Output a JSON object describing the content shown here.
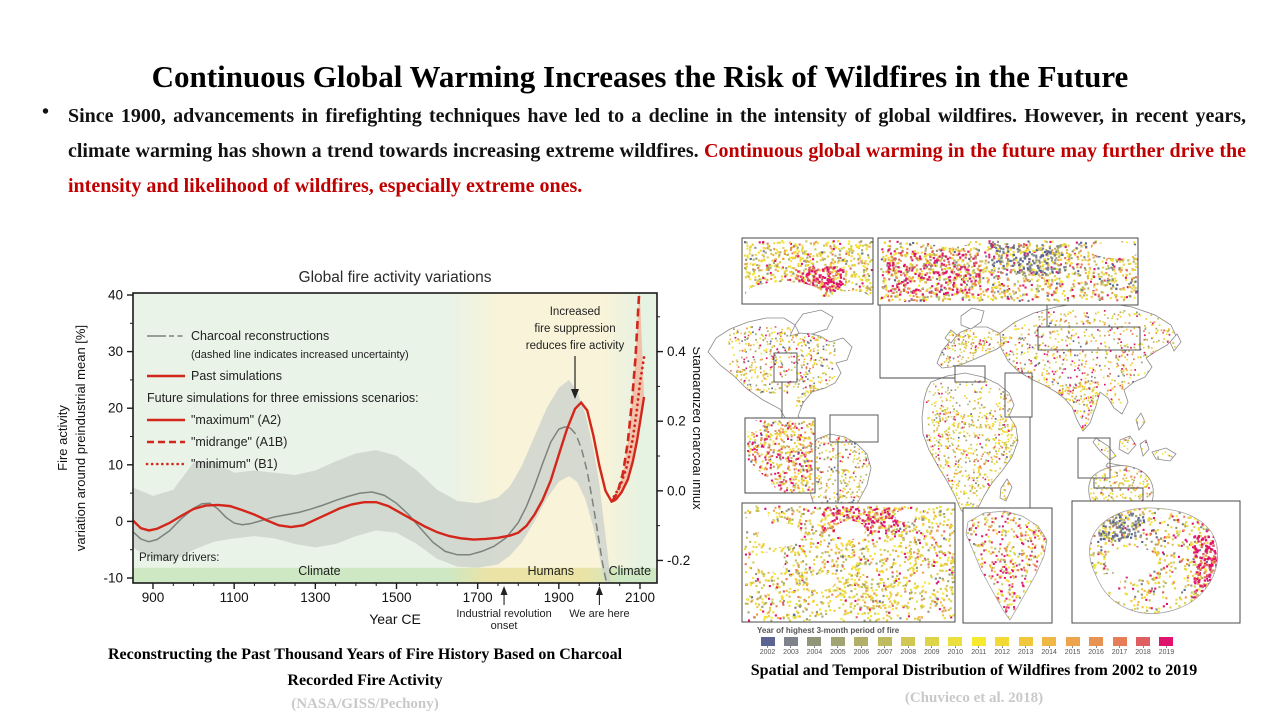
{
  "slide": {
    "title": "Continuous Global Warming Increases the Risk of Wildfires in the Future",
    "bullet_marker": "•",
    "bullet_black": "Since 1900, advancements in firefighting techniques have led to a decline in the intensity of global wildfires. However, in recent years, climate warming has shown a trend towards increasing extreme wildfires.",
    "bullet_red": "Continuous global warming in the future may further drive the intensity and likelihood of wildfires, especially extreme ones."
  },
  "left_figure": {
    "caption_line1": "Reconstructing the Past Thousand Years of Fire History Based on Charcoal",
    "caption_line2": "Recorded Fire Activity",
    "source": "(NASA/GISS/Pechony)",
    "chart_data": {
      "type": "line",
      "title": "Global fire activity variations",
      "xlabel": "Year CE",
      "ylabel_left_line1": "Fire activity",
      "ylabel_left_line2": "variation around preindustrial mean [%]",
      "ylabel_right": "Standardized charcoal influx",
      "xlim": [
        851,
        2142
      ],
      "ylim_left": [
        -10.9,
        40
      ],
      "xticks": [
        900,
        1100,
        1300,
        1500,
        1700,
        1900,
        2100
      ],
      "yticks_left": [
        -10,
        0,
        10,
        20,
        30,
        40
      ],
      "yticks_right": [
        -0.2,
        0.0,
        0.2,
        0.4
      ],
      "right_axis_map": {
        "pct_at_zero_influx": 5.4,
        "pct_per_influx": 61.5
      },
      "grid": false,
      "legend_position": "top-left",
      "legend": [
        {
          "label": "Charcoal reconstructions",
          "marker": "gray-solid-dash",
          "small": false
        },
        {
          "label": "(dashed line indicates increased uncertainty)",
          "marker": "none",
          "small": true
        },
        {
          "label": "Past simulations",
          "marker": "red-solid",
          "small": false
        },
        {
          "label": "Future simulations for three emissions scenarios:",
          "marker": "none",
          "small": false
        },
        {
          "label": "\"maximum\" (A2)",
          "marker": "red-solid",
          "small": false
        },
        {
          "label": "\"midrange\" (A1B)",
          "marker": "red-dashed",
          "small": false
        },
        {
          "label": "\"minimum\" (B1)",
          "marker": "red-dotted",
          "small": false
        }
      ],
      "annotation_fire_suppression": [
        "Increased",
        "fire suppression",
        "reduces fire activity"
      ],
      "primary_drivers_label": "Primary drivers:",
      "driver_bands": [
        {
          "label": "Climate",
          "year": 1310
        },
        {
          "label": "Humans",
          "year": 1880
        },
        {
          "label": "Climate",
          "year": 2075
        }
      ],
      "axis_annotations": [
        {
          "label_lines": [
            "Industrial revolution",
            "onset"
          ],
          "year": 1765
        },
        {
          "label_lines": [
            "We are here"
          ],
          "year": 2000
        }
      ],
      "series": [
        {
          "name": "Charcoal reconstructions",
          "color": "#7d827d",
          "style": "solid",
          "width": 1.5,
          "points": [
            [
              850,
              -1.8
            ],
            [
              870,
              -3.1
            ],
            [
              890,
              -3.6
            ],
            [
              910,
              -3.2
            ],
            [
              940,
              -1.7
            ],
            [
              970,
              0.5
            ],
            [
              1000,
              2.3
            ],
            [
              1020,
              3.1
            ],
            [
              1040,
              3.2
            ],
            [
              1060,
              2.2
            ],
            [
              1080,
              0.7
            ],
            [
              1100,
              -0.3
            ],
            [
              1120,
              -0.6
            ],
            [
              1140,
              -0.4
            ],
            [
              1170,
              0.2
            ],
            [
              1200,
              0.8
            ],
            [
              1230,
              1.2
            ],
            [
              1260,
              1.6
            ],
            [
              1290,
              2.2
            ],
            [
              1320,
              2.9
            ],
            [
              1350,
              3.7
            ],
            [
              1380,
              4.4
            ],
            [
              1410,
              5.0
            ],
            [
              1440,
              5.2
            ],
            [
              1470,
              4.6
            ],
            [
              1500,
              3.2
            ],
            [
              1530,
              1.2
            ],
            [
              1560,
              -1.3
            ],
            [
              1590,
              -3.7
            ],
            [
              1620,
              -5.3
            ],
            [
              1650,
              -5.9
            ],
            [
              1680,
              -5.9
            ],
            [
              1710,
              -5.3
            ],
            [
              1740,
              -4.4
            ],
            [
              1770,
              -2.9
            ],
            [
              1800,
              -0.2
            ],
            [
              1820,
              2.6
            ],
            [
              1840,
              6.2
            ],
            [
              1860,
              10.2
            ],
            [
              1880,
              14.0
            ],
            [
              1900,
              16.3
            ],
            [
              1915,
              16.7
            ],
            [
              1928,
              16.5
            ]
          ]
        },
        {
          "name": "Charcoal reconstructions (increased uncertainty)",
          "color": "#7d827d",
          "style": "dashed",
          "width": 1.5,
          "points": [
            [
              1928,
              16.5
            ],
            [
              1942,
              15.4
            ],
            [
              1956,
              12.8
            ],
            [
              1970,
              8.8
            ],
            [
              1984,
              3.2
            ],
            [
              1998,
              -3.0
            ],
            [
              2008,
              -7.5
            ],
            [
              2018,
              -11.0
            ],
            [
              2024,
              -13.0
            ]
          ]
        },
        {
          "name": "Past simulations",
          "color": "#d3271c",
          "style": "solid",
          "width": 2.4,
          "points": [
            [
              850,
              0.2
            ],
            [
              870,
              -1.2
            ],
            [
              890,
              -1.6
            ],
            [
              910,
              -1.3
            ],
            [
              940,
              -0.3
            ],
            [
              970,
              1.0
            ],
            [
              1000,
              2.2
            ],
            [
              1030,
              2.8
            ],
            [
              1060,
              2.9
            ],
            [
              1090,
              2.7
            ],
            [
              1120,
              2.0
            ],
            [
              1150,
              1.2
            ],
            [
              1180,
              0.2
            ],
            [
              1210,
              -0.7
            ],
            [
              1240,
              -1.0
            ],
            [
              1270,
              -0.7
            ],
            [
              1300,
              0.3
            ],
            [
              1330,
              1.3
            ],
            [
              1360,
              2.3
            ],
            [
              1390,
              3.0
            ],
            [
              1420,
              3.4
            ],
            [
              1450,
              3.4
            ],
            [
              1480,
              2.7
            ],
            [
              1510,
              1.5
            ],
            [
              1540,
              0.3
            ],
            [
              1570,
              -0.9
            ],
            [
              1600,
              -1.9
            ],
            [
              1630,
              -2.6
            ],
            [
              1660,
              -3.0
            ],
            [
              1690,
              -3.2
            ],
            [
              1720,
              -3.1
            ],
            [
              1750,
              -2.9
            ],
            [
              1780,
              -2.5
            ],
            [
              1800,
              -2.0
            ],
            [
              1820,
              -0.8
            ],
            [
              1840,
              1.2
            ],
            [
              1860,
              3.8
            ],
            [
              1880,
              7.2
            ],
            [
              1900,
              11.8
            ],
            [
              1920,
              16.3
            ],
            [
              1940,
              19.9
            ],
            [
              1955,
              21.0
            ],
            [
              1970,
              19.6
            ],
            [
              1985,
              15.2
            ],
            [
              2000,
              9.8
            ],
            [
              2015,
              5.4
            ],
            [
              2030,
              3.5
            ],
            [
              2040,
              3.8
            ]
          ]
        },
        {
          "name": "\"maximum\" (A2)",
          "color": "#d3271c",
          "style": "solid",
          "width": 2.4,
          "points": [
            [
              2040,
              3.8
            ],
            [
              2055,
              5.2
            ],
            [
              2070,
              7.4
            ],
            [
              2082,
              10.5
            ],
            [
              2092,
              14.0
            ],
            [
              2100,
              17.5
            ],
            [
              2110,
              22.0
            ]
          ]
        },
        {
          "name": "\"midrange\" (A1B)",
          "color": "#d3271c",
          "style": "dashed",
          "width": 2.6,
          "points": [
            [
              2032,
              3.6
            ],
            [
              2045,
              5.2
            ],
            [
              2058,
              8.5
            ],
            [
              2070,
              14.0
            ],
            [
              2080,
              21.0
            ],
            [
              2089,
              29.0
            ],
            [
              2096,
              38.0
            ],
            [
              2099,
              41.5
            ]
          ]
        },
        {
          "name": "\"minimum\" (B1)",
          "color": "#d3271c",
          "style": "dotted",
          "width": 2.8,
          "points": [
            [
              2036,
              4.4
            ],
            [
              2052,
              6.4
            ],
            [
              2068,
              9.8
            ],
            [
              2082,
              14.5
            ],
            [
              2092,
              19.5
            ],
            [
              2100,
              24.5
            ],
            [
              2110,
              29.0
            ]
          ]
        }
      ],
      "uncertainty_band": {
        "color": "#ccd2cc",
        "upper": [
          [
            850,
            6.0
          ],
          [
            900,
            4.5
          ],
          [
            950,
            5.6
          ],
          [
            1000,
            10.4
          ],
          [
            1050,
            10.6
          ],
          [
            1100,
            8.6
          ],
          [
            1150,
            9.0
          ],
          [
            1200,
            8.6
          ],
          [
            1250,
            8.2
          ],
          [
            1300,
            9.0
          ],
          [
            1350,
            10.6
          ],
          [
            1400,
            12.0
          ],
          [
            1450,
            12.6
          ],
          [
            1500,
            11.6
          ],
          [
            1550,
            9.0
          ],
          [
            1600,
            5.6
          ],
          [
            1650,
            3.6
          ],
          [
            1700,
            3.2
          ],
          [
            1750,
            4.2
          ],
          [
            1780,
            6.2
          ],
          [
            1810,
            10.0
          ],
          [
            1840,
            15.0
          ],
          [
            1870,
            20.0
          ],
          [
            1900,
            23.6
          ],
          [
            1925,
            25.0
          ],
          [
            1945,
            23.0
          ],
          [
            1965,
            19.0
          ],
          [
            1985,
            13.0
          ],
          [
            2000,
            6.5
          ],
          [
            2010,
            0.5
          ],
          [
            2020,
            -5.5
          ],
          [
            2028,
            -11.0
          ]
        ],
        "lower": [
          [
            850,
            -4.6
          ],
          [
            900,
            -6.6
          ],
          [
            950,
            -7.0
          ],
          [
            1000,
            -5.0
          ],
          [
            1050,
            -3.6
          ],
          [
            1100,
            -3.0
          ],
          [
            1150,
            -2.6
          ],
          [
            1200,
            -3.0
          ],
          [
            1250,
            -4.0
          ],
          [
            1300,
            -4.6
          ],
          [
            1350,
            -4.0
          ],
          [
            1400,
            -2.6
          ],
          [
            1450,
            -1.6
          ],
          [
            1500,
            -2.0
          ],
          [
            1550,
            -4.0
          ],
          [
            1600,
            -6.6
          ],
          [
            1650,
            -8.0
          ],
          [
            1700,
            -8.2
          ],
          [
            1750,
            -7.6
          ],
          [
            1780,
            -6.0
          ],
          [
            1810,
            -3.6
          ],
          [
            1840,
            0.0
          ],
          [
            1870,
            4.0
          ],
          [
            1900,
            7.0
          ],
          [
            1925,
            8.0
          ],
          [
            1945,
            7.0
          ],
          [
            1965,
            4.0
          ],
          [
            1985,
            -1.0
          ],
          [
            2000,
            -6.2
          ],
          [
            2010,
            -9.6
          ],
          [
            2020,
            -12.0
          ]
        ]
      },
      "future_envelope": {
        "color": "#f2b19a",
        "upper_series": "\"midrange\" (A1B)",
        "lower_series": "\"maximum\" (A2)"
      }
    }
  },
  "right_figure": {
    "legend_title": "Year of highest 3-month period of fire",
    "years": [
      "2002",
      "2003",
      "2004",
      "2005",
      "2006",
      "2007",
      "2008",
      "2009",
      "2010",
      "2011",
      "2012",
      "2013",
      "2014",
      "2015",
      "2016",
      "2017",
      "2018",
      "2019"
    ],
    "colors": [
      "#5c6492",
      "#7d828b",
      "#92957a",
      "#a3a474",
      "#b2af6a",
      "#c1bb5f",
      "#d0c853",
      "#ded448",
      "#ebdf3d",
      "#f6e92f",
      "#f3d836",
      "#f1c83d",
      "#efb745",
      "#eca54c",
      "#e99353",
      "#e57d59",
      "#de5e61",
      "#e1146d"
    ],
    "caption": "Spatial and Temporal Distribution of Wildfires from 2002 to 2019",
    "source": "(Chuvieco et al. 2018)"
  }
}
